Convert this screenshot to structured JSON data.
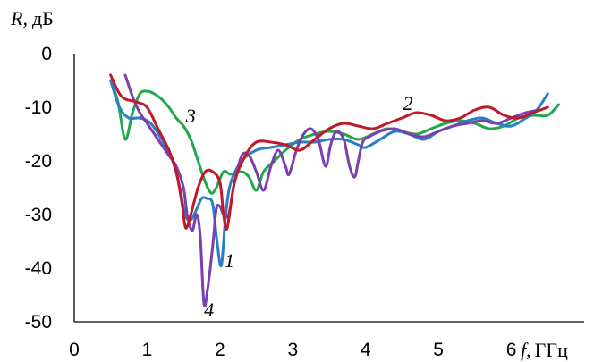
{
  "chart_data": {
    "type": "line",
    "ylabel_var": "R,",
    "ylabel_unit": "дБ",
    "xlabel_var": "f,",
    "xlabel_unit": "ГГц",
    "xlim": [
      0,
      7.0
    ],
    "ylim": [
      -50,
      0
    ],
    "x_ticks": [
      "0",
      "1",
      "2",
      "3",
      "4",
      "5",
      "6"
    ],
    "y_ticks": [
      "0",
      "-10",
      "-20",
      "-30",
      "-40",
      "-50"
    ],
    "grid": false,
    "series": [
      {
        "name": "1",
        "color": "#2a7fc4",
        "x": [
          0.5,
          0.62,
          0.75,
          0.9,
          1.05,
          1.2,
          1.35,
          1.45,
          1.52,
          1.6,
          1.68,
          1.75,
          1.82,
          1.9,
          1.96,
          2.02,
          2.08,
          2.15,
          2.3,
          2.5,
          2.7,
          2.9,
          3.1,
          3.3,
          3.5,
          3.7,
          3.9,
          4.0,
          4.2,
          4.4,
          4.6,
          4.8,
          5.0,
          5.2,
          5.4,
          5.6,
          5.8,
          6.0,
          6.2,
          6.35,
          6.5
        ],
        "y": [
          -5,
          -10,
          -12,
          -12,
          -13,
          -16,
          -20,
          -25,
          -30,
          -31,
          -29,
          -27,
          -27,
          -28,
          -35,
          -39.5,
          -30,
          -24,
          -20,
          -18,
          -17.5,
          -17,
          -16.5,
          -16.5,
          -16,
          -16,
          -17,
          -17.5,
          -16,
          -14.5,
          -15,
          -16,
          -14.5,
          -13.5,
          -12.5,
          -12,
          -13,
          -13.5,
          -12,
          -10.5,
          -7.5
        ]
      },
      {
        "name": "2",
        "color": "#c0192a",
        "x": [
          0.5,
          0.65,
          0.85,
          1.0,
          1.15,
          1.3,
          1.4,
          1.48,
          1.53,
          1.6,
          1.7,
          1.8,
          1.9,
          2.0,
          2.05,
          2.1,
          2.2,
          2.35,
          2.5,
          2.7,
          2.9,
          3.1,
          3.3,
          3.5,
          3.7,
          3.9,
          4.1,
          4.3,
          4.5,
          4.7,
          4.9,
          5.1,
          5.3,
          5.5,
          5.7,
          5.9,
          6.1,
          6.3,
          6.5
        ],
        "y": [
          -4,
          -8,
          -9,
          -10,
          -14,
          -18,
          -22,
          -28,
          -32.5,
          -30,
          -25,
          -22,
          -22,
          -24,
          -30,
          -32.5,
          -24,
          -19,
          -16.5,
          -16.5,
          -17,
          -18,
          -16,
          -14,
          -13,
          -13.5,
          -14,
          -13,
          -12,
          -11,
          -11.5,
          -12.5,
          -12,
          -10.5,
          -10,
          -11.5,
          -12,
          -11,
          -10
        ]
      },
      {
        "name": "3",
        "color": "#22a84a",
        "x": [
          0.5,
          0.6,
          0.7,
          0.8,
          0.9,
          1.0,
          1.1,
          1.2,
          1.3,
          1.4,
          1.5,
          1.6,
          1.7,
          1.8,
          1.88,
          1.95,
          2.05,
          2.15,
          2.3,
          2.4,
          2.5,
          2.6,
          2.75,
          2.9,
          3.1,
          3.3,
          3.5,
          3.7,
          3.9,
          4.1,
          4.3,
          4.5,
          4.7,
          4.9,
          5.1,
          5.3,
          5.5,
          5.7,
          5.9,
          6.1,
          6.3,
          6.5,
          6.65
        ],
        "y": [
          -5,
          -9,
          -16,
          -11,
          -7.5,
          -7,
          -7.5,
          -8.5,
          -10,
          -12,
          -13.5,
          -16,
          -20,
          -24,
          -26,
          -25,
          -22,
          -22.5,
          -22,
          -23,
          -25.5,
          -22,
          -20,
          -18,
          -16,
          -15,
          -14.5,
          -15,
          -16,
          -15,
          -14,
          -14.5,
          -15,
          -14,
          -13,
          -12.5,
          -13,
          -14,
          -13.5,
          -12,
          -11.5,
          -11.5,
          -9.5
        ]
      },
      {
        "name": "4",
        "color": "#7b3fb0",
        "x": [
          0.7,
          0.8,
          0.9,
          1.0,
          1.1,
          1.2,
          1.3,
          1.4,
          1.5,
          1.55,
          1.62,
          1.68,
          1.73,
          1.78,
          1.83,
          1.9,
          1.95,
          2.0,
          2.05,
          2.12,
          2.2,
          2.3,
          2.4,
          2.5,
          2.6,
          2.7,
          2.8,
          2.9,
          2.95,
          3.05,
          3.15,
          3.25,
          3.35,
          3.45,
          3.52,
          3.6,
          3.7,
          3.78,
          3.85,
          3.9,
          3.96,
          4.05,
          4.2,
          4.4,
          4.6,
          4.8,
          5.0,
          5.2,
          5.4,
          5.6,
          5.8,
          6.0,
          6.2,
          6.4
        ],
        "y": [
          -4,
          -8,
          -11,
          -13,
          -15,
          -17,
          -19,
          -21,
          -25,
          -30,
          -33,
          -30,
          -34,
          -46.5,
          -44,
          -36,
          -29,
          -28.5,
          -30,
          -30,
          -24,
          -19,
          -19,
          -22,
          -25.5,
          -21,
          -18,
          -21,
          -22.5,
          -18,
          -15,
          -14,
          -16,
          -21,
          -17,
          -14.5,
          -16,
          -21,
          -23,
          -20,
          -16.5,
          -15.5,
          -14.5,
          -14,
          -15,
          -15.5,
          -14.5,
          -13.5,
          -13,
          -12.5,
          -13,
          -12,
          -11,
          -10.5
        ]
      }
    ],
    "curve_labels": [
      {
        "text": "1",
        "x": 2.13,
        "y": -38.5
      },
      {
        "text": "2",
        "x": 4.58,
        "y": -9.2
      },
      {
        "text": "3",
        "x": 1.6,
        "y": -11.5
      },
      {
        "text": "4",
        "x": 1.85,
        "y": -47.7
      }
    ]
  }
}
